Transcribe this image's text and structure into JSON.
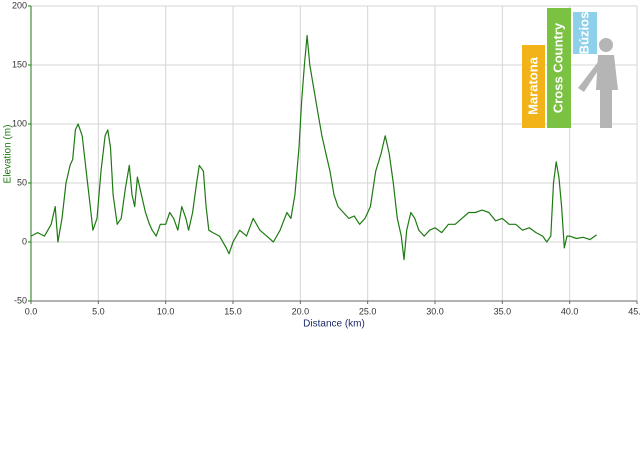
{
  "chart_data": {
    "type": "line",
    "xlabel": "Distance (km)",
    "ylabel": "Elevation (m)",
    "logo": [
      "Maratona",
      "Cross Country",
      "Búzios"
    ],
    "color": "#1e7a12",
    "grid": true,
    "xlim": [
      0,
      45
    ],
    "ylim": [
      -50,
      200
    ],
    "xticks": [
      {
        "value": 0,
        "label": "0.0"
      },
      {
        "value": 5,
        "label": "5.0"
      },
      {
        "value": 10,
        "label": "10.0"
      },
      {
        "value": 15,
        "label": "15.0"
      },
      {
        "value": 20,
        "label": "20.0"
      },
      {
        "value": 25,
        "label": "25.0"
      },
      {
        "value": 30,
        "label": "30.0"
      },
      {
        "value": 35,
        "label": "35.0"
      },
      {
        "value": 40,
        "label": "40.0"
      },
      {
        "value": 45,
        "label": "45.0"
      }
    ],
    "yticks": [
      -50,
      0,
      50,
      100,
      150,
      200
    ],
    "x": [
      0,
      0.5,
      1,
      1.5,
      1.8,
      2,
      2.3,
      2.6,
      2.9,
      3.1,
      3.3,
      3.5,
      3.8,
      4.1,
      4.4,
      4.6,
      4.9,
      5.2,
      5.5,
      5.7,
      5.9,
      6.1,
      6.4,
      6.7,
      7.0,
      7.3,
      7.5,
      7.7,
      7.9,
      8.2,
      8.5,
      8.8,
      9.0,
      9.3,
      9.6,
      10.0,
      10.3,
      10.6,
      10.9,
      11.2,
      11.5,
      11.7,
      12.0,
      12.3,
      12.5,
      12.8,
      13.0,
      13.2,
      13.5,
      14.0,
      14.5,
      14.7,
      15.0,
      15.5,
      16.0,
      16.5,
      17.0,
      17.5,
      18.0,
      18.5,
      19.0,
      19.3,
      19.6,
      19.9,
      20.1,
      20.3,
      20.5,
      20.7,
      21.0,
      21.3,
      21.6,
      21.9,
      22.2,
      22.5,
      22.8,
      23.2,
      23.6,
      24.0,
      24.4,
      24.8,
      25.2,
      25.6,
      26.0,
      26.3,
      26.6,
      26.9,
      27.2,
      27.5,
      27.7,
      27.9,
      28.2,
      28.5,
      28.8,
      29.2,
      29.6,
      30.0,
      30.5,
      31.0,
      31.5,
      32.0,
      32.5,
      33.0,
      33.5,
      34.0,
      34.5,
      35.0,
      35.5,
      36.0,
      36.5,
      37.0,
      37.5,
      38.0,
      38.3,
      38.6,
      38.8,
      39.0,
      39.2,
      39.4,
      39.6,
      39.8,
      40.0,
      40.5,
      41.0,
      41.5,
      42.0
    ],
    "values": [
      5,
      8,
      5,
      15,
      30,
      0,
      20,
      50,
      65,
      70,
      95,
      100,
      90,
      60,
      30,
      10,
      20,
      60,
      90,
      95,
      80,
      40,
      15,
      20,
      45,
      65,
      40,
      30,
      55,
      40,
      25,
      15,
      10,
      5,
      15,
      15,
      25,
      20,
      10,
      30,
      20,
      10,
      25,
      50,
      65,
      60,
      30,
      10,
      8,
      5,
      -5,
      -10,
      0,
      10,
      5,
      20,
      10,
      5,
      0,
      10,
      25,
      20,
      40,
      80,
      120,
      150,
      175,
      150,
      130,
      110,
      90,
      75,
      60,
      40,
      30,
      25,
      20,
      22,
      15,
      20,
      30,
      60,
      75,
      90,
      75,
      50,
      20,
      5,
      -15,
      10,
      25,
      20,
      10,
      5,
      10,
      12,
      8,
      15,
      15,
      20,
      25,
      25,
      27,
      25,
      18,
      20,
      15,
      15,
      10,
      12,
      8,
      5,
      0,
      5,
      50,
      68,
      55,
      30,
      -5,
      5,
      5,
      3,
      4,
      2,
      6
    ]
  }
}
